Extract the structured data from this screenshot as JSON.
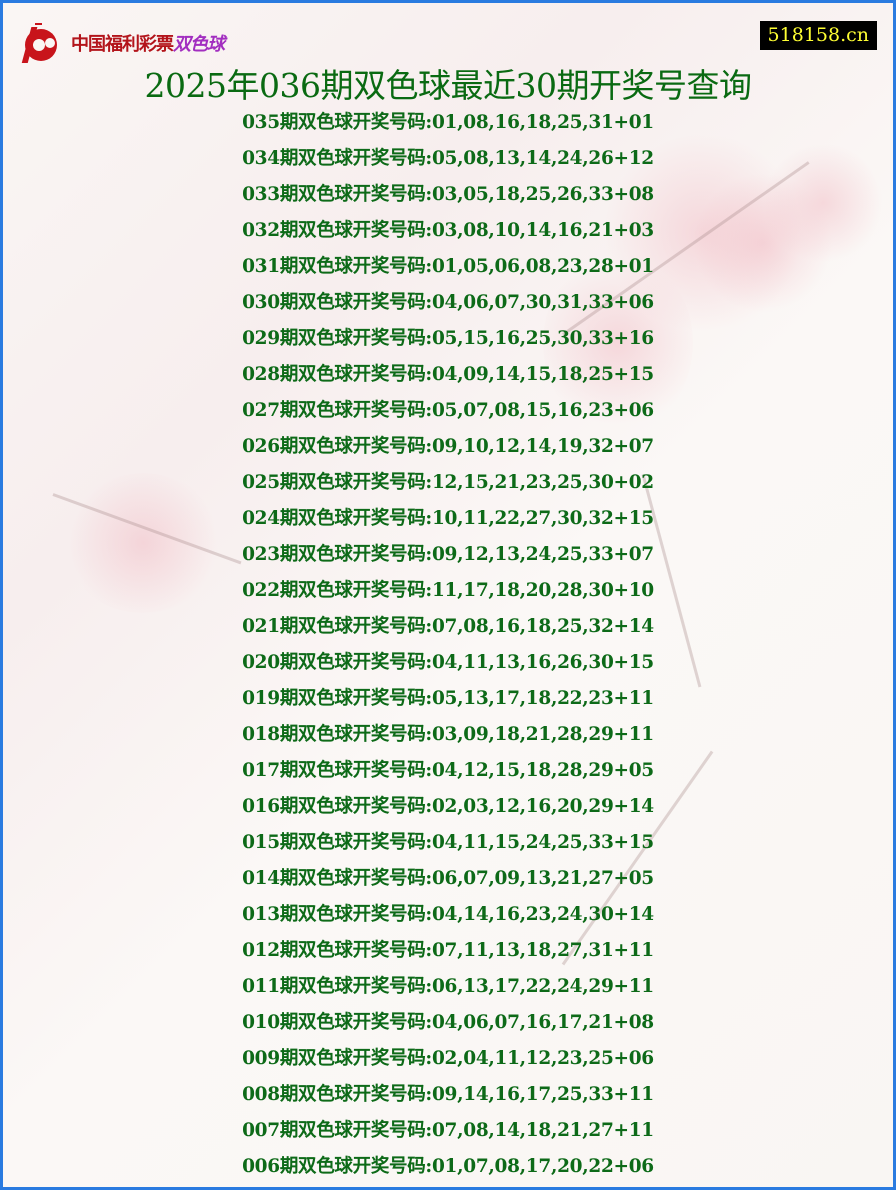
{
  "logo": {
    "brand_text": "中国福利彩票",
    "game_text": "双色球",
    "brand_color": "#b3141b",
    "game_color": "#a22ec0"
  },
  "site_badge": "518158.cn",
  "title": "2025年036期双色球最近30期开奖号查询",
  "colors": {
    "text": "#0d6a18",
    "border": "#2a7be0",
    "badge_bg": "#000000",
    "badge_text": "#ffff33"
  },
  "draws": [
    "035期双色球开奖号码:01,08,16,18,25,31+01",
    "034期双色球开奖号码:05,08,13,14,24,26+12",
    "033期双色球开奖号码:03,05,18,25,26,33+08",
    "032期双色球开奖号码:03,08,10,14,16,21+03",
    "031期双色球开奖号码:01,05,06,08,23,28+01",
    "030期双色球开奖号码:04,06,07,30,31,33+06",
    "029期双色球开奖号码:05,15,16,25,30,33+16",
    "028期双色球开奖号码:04,09,14,15,18,25+15",
    "027期双色球开奖号码:05,07,08,15,16,23+06",
    "026期双色球开奖号码:09,10,12,14,19,32+07",
    "025期双色球开奖号码:12,15,21,23,25,30+02",
    "024期双色球开奖号码:10,11,22,27,30,32+15",
    "023期双色球开奖号码:09,12,13,24,25,33+07",
    "022期双色球开奖号码:11,17,18,20,28,30+10",
    "021期双色球开奖号码:07,08,16,18,25,32+14",
    "020期双色球开奖号码:04,11,13,16,26,30+15",
    "019期双色球开奖号码:05,13,17,18,22,23+11",
    "018期双色球开奖号码:03,09,18,21,28,29+11",
    "017期双色球开奖号码:04,12,15,18,28,29+05",
    "016期双色球开奖号码:02,03,12,16,20,29+14",
    "015期双色球开奖号码:04,11,15,24,25,33+15",
    "014期双色球开奖号码:06,07,09,13,21,27+05",
    "013期双色球开奖号码:04,14,16,23,24,30+14",
    "012期双色球开奖号码:07,11,13,18,27,31+11",
    "011期双色球开奖号码:06,13,17,22,24,29+11",
    "010期双色球开奖号码:04,06,07,16,17,21+08",
    "009期双色球开奖号码:02,04,11,12,23,25+06",
    "008期双色球开奖号码:09,14,16,17,25,33+11",
    "007期双色球开奖号码:07,08,14,18,21,27+11",
    "006期双色球开奖号码:01,07,08,17,20,22+06"
  ]
}
